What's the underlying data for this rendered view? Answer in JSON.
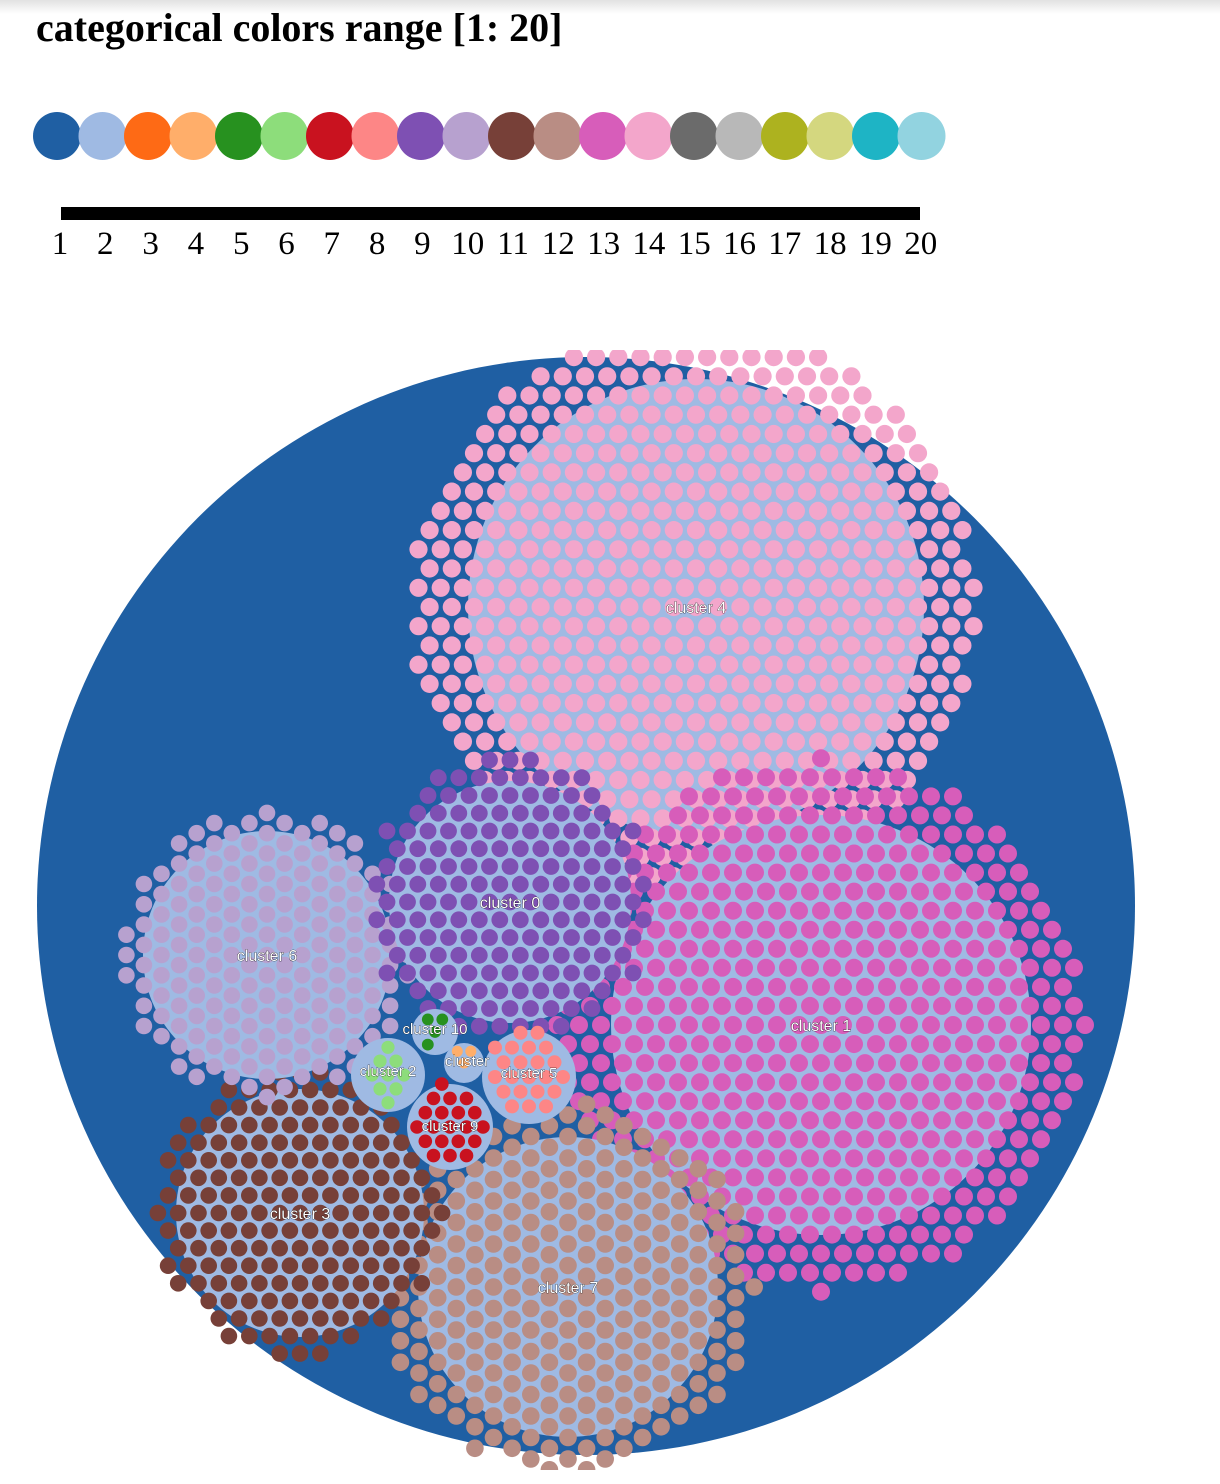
{
  "title": "categorical colors range [1: 20]",
  "palette": [
    "#1f5fa3",
    "#9fbae3",
    "#fe6a15",
    "#ffae6a",
    "#27911f",
    "#8ddd7b",
    "#c9121f",
    "#fd8686",
    "#7e50b3",
    "#b7a1cf",
    "#774038",
    "#b98d84",
    "#d75dba",
    "#f3a6cb",
    "#6b6b6b",
    "#b8b8b8",
    "#adb21f",
    "#d4d77f",
    "#1eb4c5",
    "#92d3e0"
  ],
  "scale_labels": [
    "1",
    "2",
    "3",
    "4",
    "5",
    "6",
    "7",
    "8",
    "9",
    "10",
    "11",
    "12",
    "13",
    "14",
    "15",
    "16",
    "17",
    "18",
    "19",
    "20"
  ],
  "root": {
    "color": "#1f5fa3"
  },
  "cluster_bg": "#9fbae3",
  "clusters": [
    {
      "label": "cluster 4",
      "color": "#f3a6cb",
      "nodes": 586
    },
    {
      "label": "cluster 1",
      "color": "#d75dba",
      "nodes": 520
    },
    {
      "label": "cluster 7",
      "color": "#b98d84",
      "nodes": 269
    },
    {
      "label": "cluster 3",
      "color": "#774038",
      "nodes": 181
    },
    {
      "label": "cluster 6",
      "color": "#b7a1cf",
      "nodes": 185
    },
    {
      "label": "cluster 0",
      "color": "#7e50b3",
      "nodes": 173
    },
    {
      "label": "cluster 5",
      "color": "#fd8686",
      "nodes": 22
    },
    {
      "label": "cluster 9",
      "color": "#c9121f",
      "nodes": 20
    },
    {
      "label": "cluster 2",
      "color": "#8ddd7b",
      "nodes": 9
    },
    {
      "label": "cluster 10",
      "color": "#27911f",
      "nodes": 4
    },
    {
      "label": "cluster",
      "color": "#ffae6a",
      "nodes": 3
    }
  ]
}
